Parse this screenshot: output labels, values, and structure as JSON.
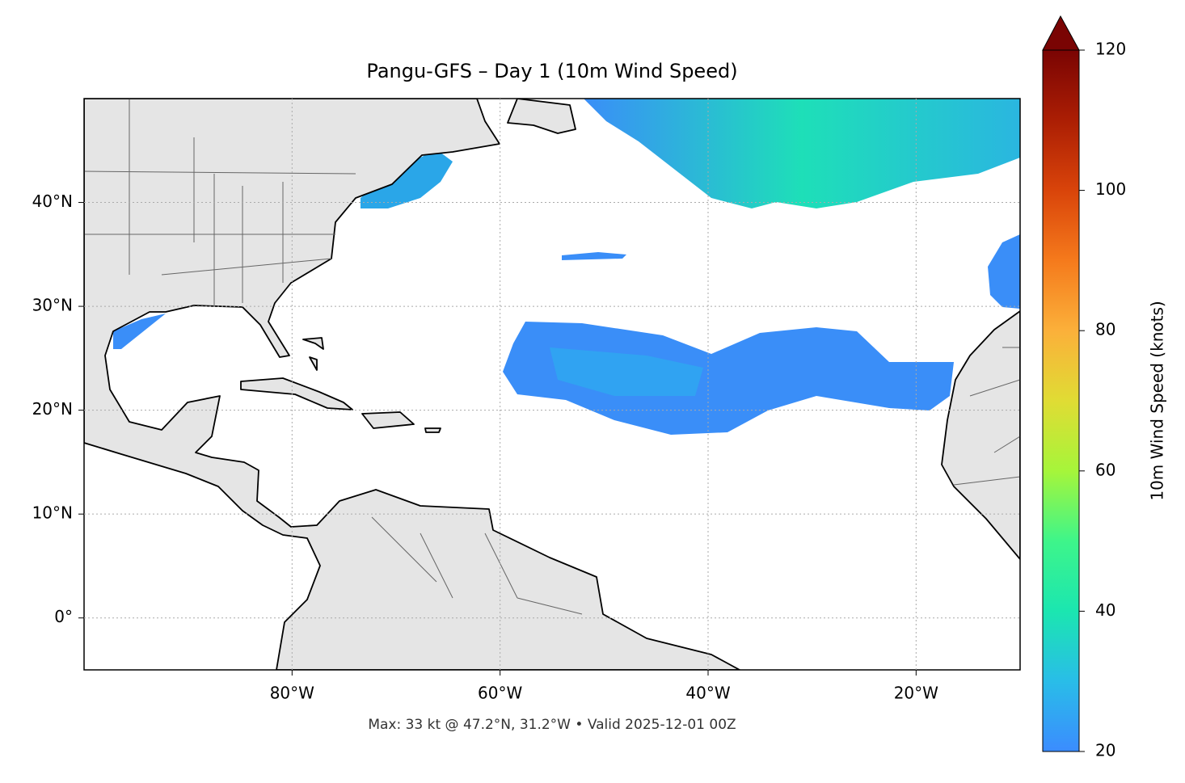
{
  "chart_data": {
    "type": "map",
    "title": "Pangu-GFS – Day 1 (10m Wind Speed)",
    "note": "Max: 33 kt @ 47.2°N, 31.2°W • Valid 2025-12-01 00Z",
    "xlim": [
      -100,
      -10
    ],
    "ylim": [
      -5,
      50
    ],
    "xticks": [
      {
        "value": -80,
        "label": "80°W"
      },
      {
        "value": -60,
        "label": "60°W"
      },
      {
        "value": -40,
        "label": "40°W"
      },
      {
        "value": -20,
        "label": "20°W"
      }
    ],
    "yticks": [
      {
        "value": 0,
        "label": "0°"
      },
      {
        "value": 10,
        "label": "10°N"
      },
      {
        "value": 20,
        "label": "20°N"
      },
      {
        "value": 30,
        "label": "30°N"
      },
      {
        "value": 40,
        "label": "40°N"
      }
    ],
    "grid": true,
    "colorbar": {
      "label": "10m Wind Speed (knots)",
      "lim": [
        20,
        120
      ],
      "ticks": [
        20,
        40,
        60,
        80,
        100,
        120
      ]
    }
  }
}
